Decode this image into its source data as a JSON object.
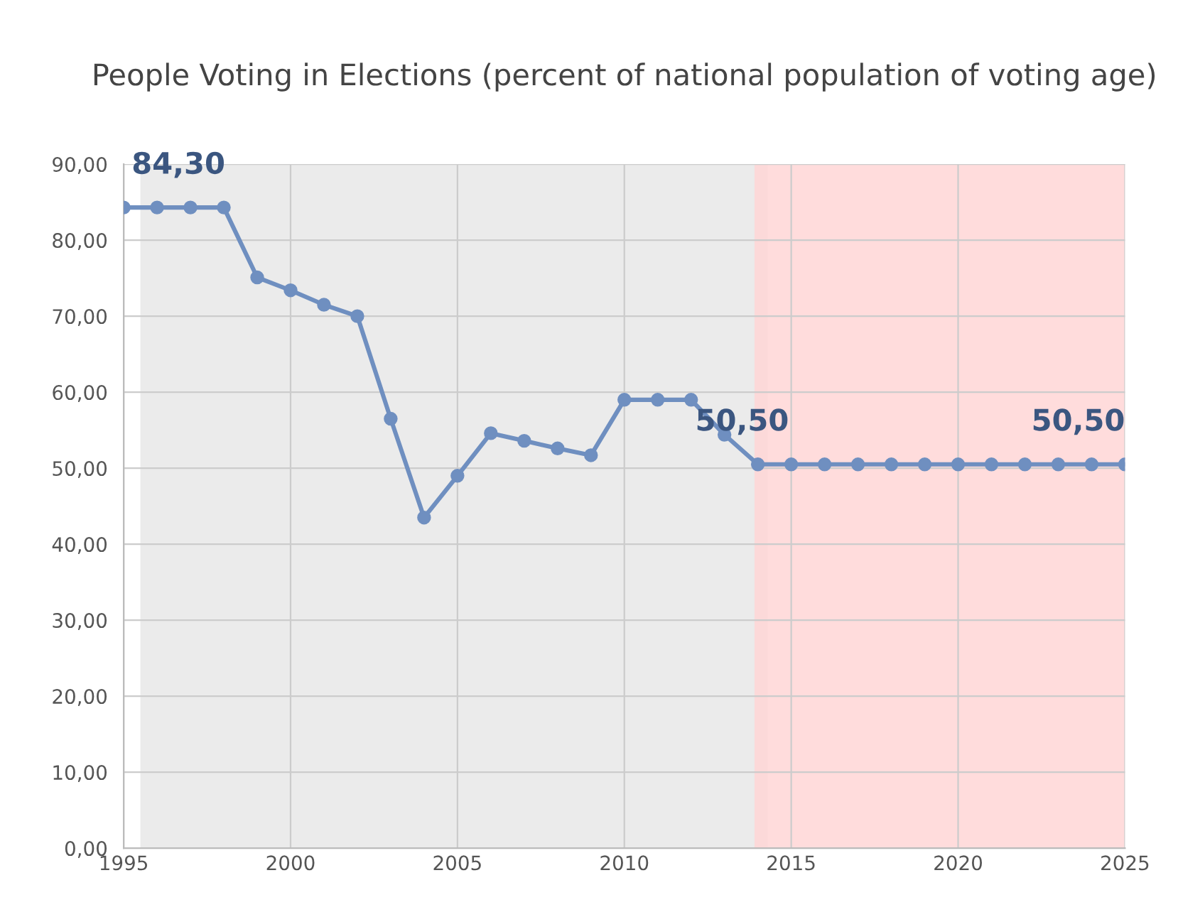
{
  "chart_data": {
    "type": "line",
    "title": "People Voting in Elections (percent of national population of voting age)",
    "x": [
      1995,
      1996,
      1997,
      1998,
      1999,
      2000,
      2001,
      2002,
      2003,
      2004,
      2005,
      2006,
      2007,
      2008,
      2009,
      2010,
      2011,
      2012,
      2013,
      2014,
      2015,
      2016,
      2017,
      2018,
      2019,
      2020,
      2021,
      2022,
      2023,
      2024,
      2025
    ],
    "series": [
      {
        "color": "#6f8fc0",
        "values": [
          84.3,
          84.3,
          84.3,
          84.3,
          75.1,
          73.4,
          71.5,
          70.0,
          56.5,
          43.5,
          49.0,
          54.6,
          53.6,
          52.6,
          51.7,
          59.0,
          59.0,
          59.0,
          54.4,
          50.5,
          50.5,
          50.5,
          50.5,
          50.5,
          50.5,
          50.5,
          50.5,
          50.5,
          50.5,
          50.5,
          50.5
        ],
        "value_labels": [
          "84,30",
          null,
          null,
          null,
          null,
          null,
          null,
          null,
          null,
          null,
          null,
          null,
          null,
          null,
          null,
          null,
          null,
          null,
          null,
          "50,50",
          null,
          null,
          null,
          null,
          null,
          null,
          null,
          null,
          null,
          null,
          "50,50"
        ]
      }
    ],
    "xlim": [
      1995,
      2025
    ],
    "xticks": [
      1995,
      2000,
      2005,
      2010,
      2015,
      2020,
      2025
    ],
    "ylim": [
      0,
      90
    ],
    "yticks": [
      {
        "value": 0,
        "label": "0,00"
      },
      {
        "value": 10,
        "label": "10,00"
      },
      {
        "value": 20,
        "label": "20,00"
      },
      {
        "value": 30,
        "label": "30,00"
      },
      {
        "value": 40,
        "label": "40,00"
      },
      {
        "value": 50,
        "label": "50,00"
      },
      {
        "value": 60,
        "label": "60,00"
      },
      {
        "value": 70,
        "label": "70,00"
      },
      {
        "value": 80,
        "label": "80,00"
      },
      {
        "value": 90,
        "label": "90,00"
      }
    ],
    "bands": [
      {
        "axis": "x",
        "from": 1995.5,
        "to": 2014.3,
        "color": "#e8e8e8"
      },
      {
        "axis": "x",
        "from": 2013.9,
        "to": 2025,
        "color": "#ffd6d6"
      }
    ],
    "grid": true,
    "marker": "circle",
    "line_style": "solid"
  }
}
